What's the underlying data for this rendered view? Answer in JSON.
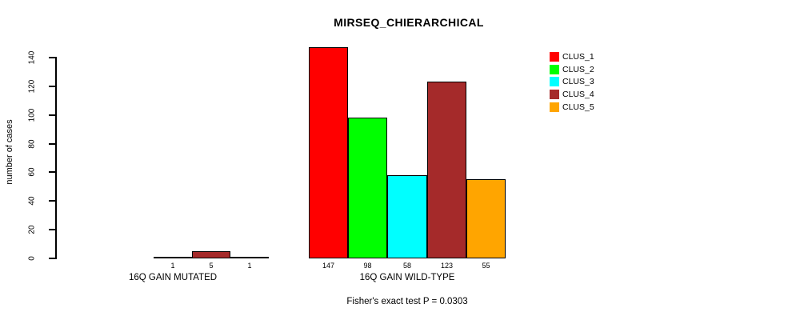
{
  "chart_data": {
    "type": "bar",
    "title": "MIRSEQ_CHIERARCHICAL",
    "ylabel": "number of cases",
    "xlabel": "",
    "ylim": [
      0,
      140
    ],
    "yticks": [
      0,
      20,
      40,
      60,
      80,
      100,
      120,
      140
    ],
    "grid": false,
    "background_color": "#FFFFFF",
    "axis_color": "#000000",
    "series": [
      {
        "name": "CLUS_1",
        "color": "#FF0000"
      },
      {
        "name": "CLUS_2",
        "color": "#00FF00"
      },
      {
        "name": "CLUS_3",
        "color": "#00FFFF"
      },
      {
        "name": "CLUS_4",
        "color": "#A52A2A"
      },
      {
        "name": "CLUS_5",
        "color": "#FFA500"
      }
    ],
    "groups": [
      {
        "label": "16Q GAIN MUTATED",
        "values": [
          0,
          0,
          1,
          5,
          1
        ],
        "value_labels": [
          "",
          "",
          "1",
          "5",
          "1"
        ]
      },
      {
        "label": "16Q GAIN WILD-TYPE",
        "values": [
          147,
          98,
          58,
          123,
          55
        ],
        "value_labels": [
          "147",
          "98",
          "58",
          "123",
          "55"
        ]
      }
    ],
    "legend": {
      "position": "top-right",
      "entries": [
        "CLUS_1",
        "CLUS_2",
        "CLUS_3",
        "CLUS_4",
        "CLUS_5"
      ]
    },
    "annotation": "Fisher's exact test P = 0.0303"
  }
}
